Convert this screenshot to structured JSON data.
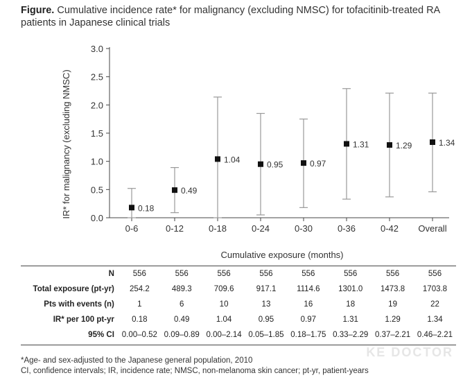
{
  "title": {
    "prefix": "Figure.",
    "line1": "Cumulative incidence rate* for malignancy (excluding NMSC) for tofacitinib-treated RA",
    "line2": "patients in Japanese clinical trials"
  },
  "chart_data": {
    "type": "scatter",
    "xlabel": "Cumulative exposure (months)",
    "ylabel": "IR* for malignancy (excluding NMSC)",
    "ylim": [
      0,
      3.0
    ],
    "yticks": [
      "0.0",
      "0.5",
      "1.0",
      "1.5",
      "2.0",
      "2.5",
      "3.0"
    ],
    "categories": [
      "0-6",
      "0-12",
      "0-18",
      "0-24",
      "0-30",
      "0-36",
      "0-42",
      "Overall"
    ],
    "values": [
      0.18,
      0.49,
      1.04,
      0.95,
      0.97,
      1.31,
      1.29,
      1.34
    ],
    "value_labels": [
      "0.18",
      "0.49",
      "1.04",
      "0.95",
      "0.97",
      "1.31",
      "1.29",
      "1.34"
    ],
    "ci_lower": [
      0.0,
      0.09,
      0.0,
      0.05,
      0.18,
      0.33,
      0.37,
      0.46
    ],
    "ci_upper": [
      0.52,
      0.89,
      2.14,
      1.85,
      1.75,
      2.29,
      2.21,
      2.21
    ],
    "grid": false,
    "marker_color": "#111111",
    "errorbar_color": "#999999"
  },
  "table": {
    "rows": [
      {
        "label": "N",
        "cells": [
          "556",
          "556",
          "556",
          "556",
          "556",
          "556",
          "556",
          "556"
        ]
      },
      {
        "label": "Total exposure (pt-yr)",
        "cells": [
          "254.2",
          "489.3",
          "709.6",
          "917.1",
          "1114.6",
          "1301.0",
          "1473.8",
          "1703.8"
        ]
      },
      {
        "label": "Pts with events (n)",
        "cells": [
          "1",
          "6",
          "10",
          "13",
          "16",
          "18",
          "19",
          "22"
        ]
      },
      {
        "label": "IR* per 100 pt-yr",
        "cells": [
          "0.18",
          "0.49",
          "1.04",
          "0.95",
          "0.97",
          "1.31",
          "1.29",
          "1.34"
        ]
      },
      {
        "label": "95% CI",
        "cells": [
          "0.00–0.52",
          "0.09–0.89",
          "0.00–2.14",
          "0.05–1.85",
          "0.18–1.75",
          "0.33–2.29",
          "0.37–2.21",
          "0.46–2.21"
        ]
      }
    ]
  },
  "footnotes": {
    "line1": "*Age- and sex-adjusted to the Japanese general population, 2010",
    "line2": "CI, confidence intervals; IR, incidence rate; NMSC, non-melanoma skin cancer; pt-yr, patient-years"
  },
  "watermark": "KE DOCTOR"
}
